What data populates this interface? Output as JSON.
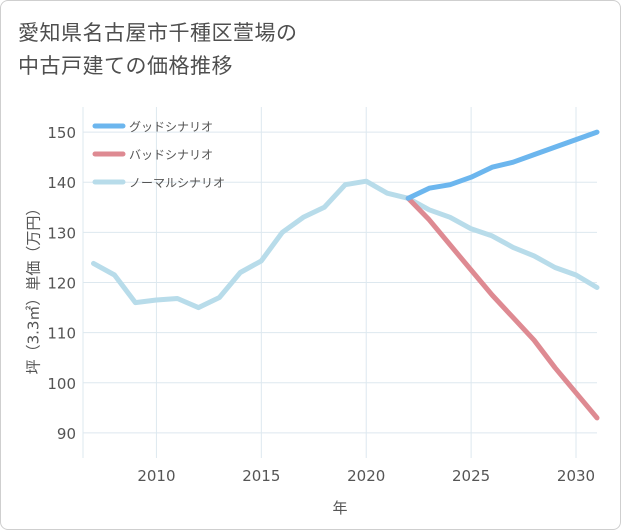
{
  "title": {
    "line1": "愛知県名古屋市千種区萱場の",
    "line2": "中古戸建ての価格推移"
  },
  "chart_data": {
    "type": "line",
    "xlabel": "年",
    "ylabel": "坪（3.3㎡）単価（万円）",
    "xlim": [
      2006.5,
      2031
    ],
    "ylim": [
      85,
      155
    ],
    "xticks": [
      2010,
      2015,
      2020,
      2025,
      2030
    ],
    "yticks": [
      90,
      100,
      110,
      120,
      130,
      140,
      150
    ],
    "grid": true,
    "legend_position": "top-left",
    "series": [
      {
        "name": "グッドシナリオ",
        "color": "#6cb6ee",
        "x": [
          2022,
          2023,
          2024,
          2025,
          2026,
          2027,
          2028,
          2029,
          2030,
          2031
        ],
        "y": [
          136.8,
          138.8,
          139.5,
          141.0,
          143.0,
          144.0,
          145.5,
          147.0,
          148.5,
          150.0
        ]
      },
      {
        "name": "バッドシナリオ",
        "color": "#de8a92",
        "x": [
          2022,
          2023,
          2024,
          2025,
          2026,
          2027,
          2028,
          2029,
          2030,
          2031
        ],
        "y": [
          136.8,
          132.5,
          127.5,
          122.5,
          117.5,
          113.0,
          108.5,
          103.0,
          98.0,
          93.0
        ]
      },
      {
        "name": "ノーマルシナリオ",
        "color": "#b8dcea",
        "x": [
          2007,
          2008,
          2009,
          2010,
          2011,
          2012,
          2013,
          2014,
          2015,
          2016,
          2017,
          2018,
          2019,
          2020,
          2021,
          2022,
          2023,
          2024,
          2025,
          2026,
          2027,
          2028,
          2029,
          2030,
          2031
        ],
        "y": [
          123.8,
          121.5,
          116.0,
          116.5,
          116.8,
          115.0,
          117.0,
          122.0,
          124.3,
          130.0,
          133.0,
          135.0,
          139.5,
          140.2,
          137.8,
          136.8,
          134.5,
          133.0,
          130.7,
          129.3,
          127.0,
          125.3,
          123.0,
          121.5,
          119.0
        ]
      }
    ]
  }
}
